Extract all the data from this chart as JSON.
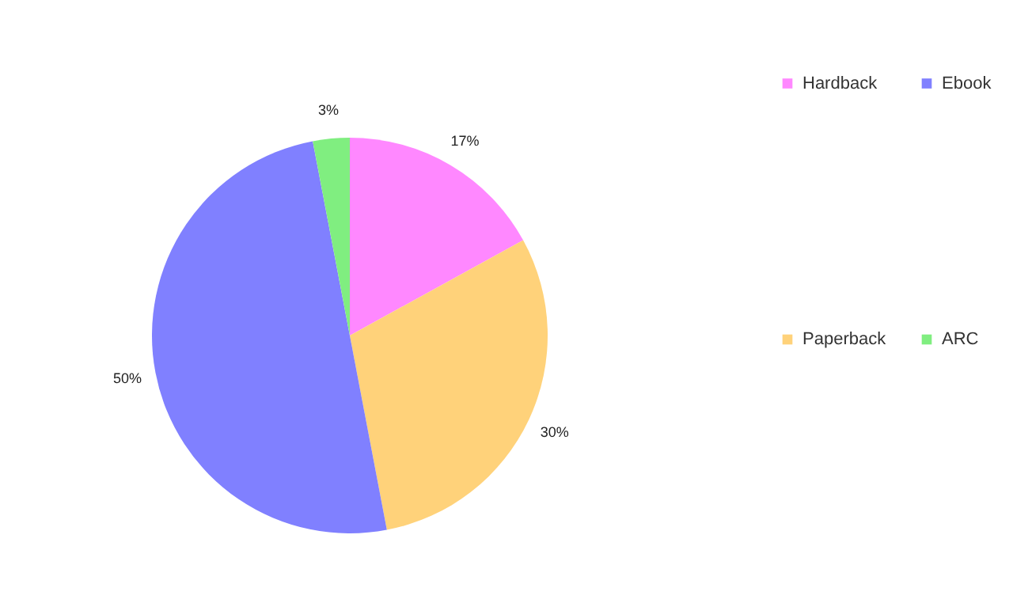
{
  "chart_data": {
    "type": "pie",
    "categories": [
      "Hardback",
      "Paperback",
      "Ebook",
      "ARC"
    ],
    "values": [
      17,
      30,
      50,
      3
    ],
    "colors": [
      "#ff88ff",
      "#ffd27a",
      "#8080ff",
      "#80ee80"
    ],
    "value_labels": [
      "17%",
      "30%",
      "50%",
      "3%"
    ],
    "legend": "right"
  }
}
